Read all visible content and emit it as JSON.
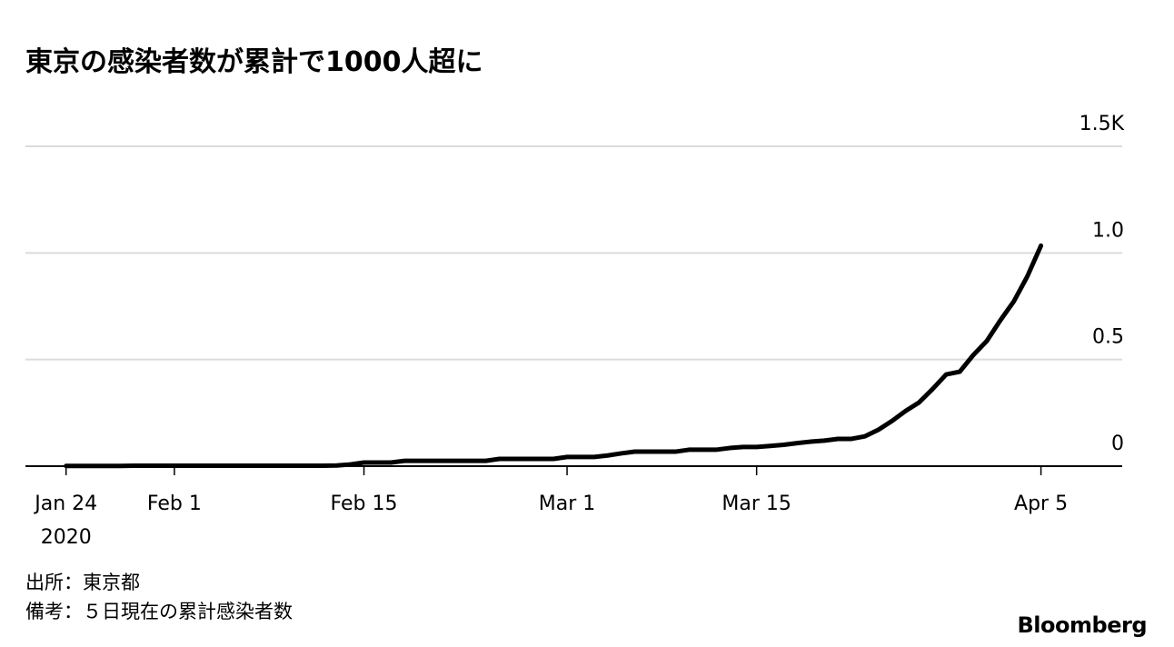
{
  "chart_data": {
    "type": "line",
    "title": "東京の感染者数が累計で1000人超に",
    "x": [
      "2020-01-24",
      "2020-01-25",
      "2020-01-26",
      "2020-01-27",
      "2020-01-28",
      "2020-01-29",
      "2020-01-30",
      "2020-01-31",
      "2020-02-01",
      "2020-02-02",
      "2020-02-03",
      "2020-02-04",
      "2020-02-05",
      "2020-02-06",
      "2020-02-07",
      "2020-02-08",
      "2020-02-09",
      "2020-02-10",
      "2020-02-11",
      "2020-02-12",
      "2020-02-13",
      "2020-02-14",
      "2020-02-15",
      "2020-02-16",
      "2020-02-17",
      "2020-02-18",
      "2020-02-19",
      "2020-02-20",
      "2020-02-21",
      "2020-02-22",
      "2020-02-23",
      "2020-02-24",
      "2020-02-25",
      "2020-02-26",
      "2020-02-27",
      "2020-02-28",
      "2020-02-29",
      "2020-03-01",
      "2020-03-02",
      "2020-03-03",
      "2020-03-04",
      "2020-03-05",
      "2020-03-06",
      "2020-03-07",
      "2020-03-08",
      "2020-03-09",
      "2020-03-10",
      "2020-03-11",
      "2020-03-12",
      "2020-03-13",
      "2020-03-14",
      "2020-03-15",
      "2020-03-16",
      "2020-03-17",
      "2020-03-18",
      "2020-03-19",
      "2020-03-20",
      "2020-03-21",
      "2020-03-22",
      "2020-03-23",
      "2020-03-24",
      "2020-03-25",
      "2020-03-26",
      "2020-03-27",
      "2020-03-28",
      "2020-03-29",
      "2020-03-30",
      "2020-03-31",
      "2020-04-01",
      "2020-04-02",
      "2020-04-03",
      "2020-04-04",
      "2020-04-05"
    ],
    "series": [
      {
        "color": "#000000",
        "values": [
          0.001,
          0.001,
          0.001,
          0.001,
          0.001,
          0.002,
          0.002,
          0.002,
          0.002,
          0.002,
          0.002,
          0.002,
          0.002,
          0.002,
          0.002,
          0.002,
          0.002,
          0.002,
          0.002,
          0.002,
          0.003,
          0.008,
          0.017,
          0.017,
          0.017,
          0.025,
          0.025,
          0.025,
          0.025,
          0.025,
          0.025,
          0.025,
          0.034,
          0.034,
          0.034,
          0.034,
          0.034,
          0.043,
          0.043,
          0.043,
          0.05,
          0.06,
          0.068,
          0.068,
          0.068,
          0.068,
          0.077,
          0.077,
          0.077,
          0.085,
          0.09,
          0.09,
          0.095,
          0.1,
          0.108,
          0.115,
          0.12,
          0.128,
          0.128,
          0.14,
          0.171,
          0.212,
          0.259,
          0.299,
          0.362,
          0.43,
          0.443,
          0.521,
          0.587,
          0.684,
          0.773,
          0.891,
          1.034
        ]
      }
    ],
    "xlim": [
      "2020-01-21",
      "2020-04-11"
    ],
    "xticks": [
      {
        "value": "2020-01-24",
        "label": "Jan 24"
      },
      {
        "value": "2020-02-01",
        "label": "Feb 1"
      },
      {
        "value": "2020-02-15",
        "label": "Feb 15"
      },
      {
        "value": "2020-03-01",
        "label": "Mar 1"
      },
      {
        "value": "2020-03-15",
        "label": "Mar 15"
      },
      {
        "value": "2020-04-05",
        "label": "Apr 5"
      }
    ],
    "year_label": "2020",
    "ylim": [
      0,
      1.5
    ],
    "yticks": [
      0,
      0.5,
      {
        "value": 1,
        "label": "1.0"
      },
      {
        "value": 1.5,
        "label": "1.5K"
      }
    ],
    "grid": true,
    "source": "出所：東京都",
    "note": "備考：５日現在の累計感染者数",
    "brand": "Bloomberg"
  }
}
